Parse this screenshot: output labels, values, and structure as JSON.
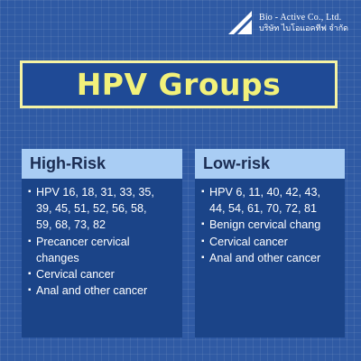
{
  "brand": {
    "name_en": "Bio - Active Co., Ltd.",
    "name_th": "บริษัท ไบโอแอคทีฟ จำกัด",
    "logo_icon": "triangle-sail-icon"
  },
  "title": "HPV Groups",
  "colors": {
    "background": "#2f5aa4",
    "title": "#f2f17a",
    "title_border": "#f5f3a3",
    "header_bg": "#a9cdf4",
    "panel_bg": "#1b4488"
  },
  "groups": [
    {
      "heading": "High-Risk",
      "items": [
        "HPV 16, 18, 31, 33, 35,\n39, 45, 51, 52, 56, 58,\n59, 68, 73, 82",
        "Precancer cervical\nchanges",
        "Cervical cancer",
        "Anal and other cancer"
      ]
    },
    {
      "heading": "Low-risk",
      "items": [
        "HPV 6, 11, 40, 42, 43,\n44, 54, 61, 70, 72, 81",
        "Benign cervical chang",
        "Cervical cancer",
        "Anal and other cancer"
      ]
    }
  ]
}
